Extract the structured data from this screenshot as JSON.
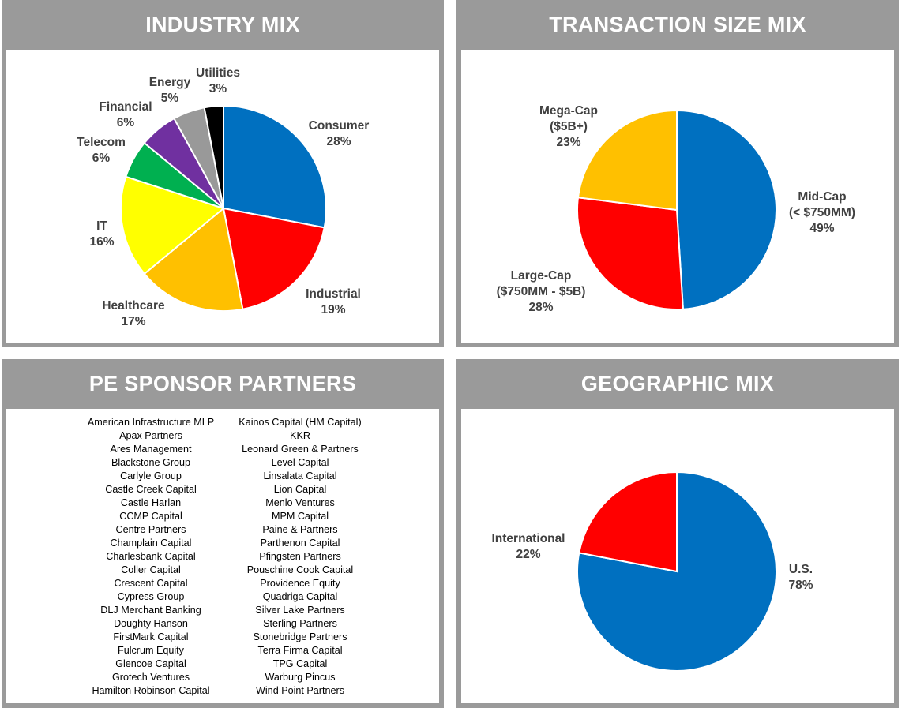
{
  "colors": {
    "blue": "#0070C0",
    "red": "#FF0000",
    "gold": "#FFC000",
    "yellow": "#FFFF00",
    "green": "#00B050",
    "purple": "#7030A0",
    "gray": "#999999",
    "black": "#000000",
    "header_bg": "#9a9a9a",
    "label_text": "#404040"
  },
  "chart_data": [
    {
      "type": "pie",
      "title": "INDUSTRY MIX",
      "slices": [
        {
          "label": "Consumer",
          "value": 28,
          "display": "28%",
          "color": "#0070C0"
        },
        {
          "label": "Industrial",
          "value": 19,
          "display": "19%",
          "color": "#FF0000"
        },
        {
          "label": "Healthcare",
          "value": 17,
          "display": "17%",
          "color": "#FFC000"
        },
        {
          "label": "IT",
          "value": 16,
          "display": "16%",
          "color": "#FFFF00"
        },
        {
          "label": "Telecom",
          "value": 6,
          "display": "6%",
          "color": "#00B050"
        },
        {
          "label": "Financial",
          "value": 6,
          "display": "6%",
          "color": "#7030A0"
        },
        {
          "label": "Energy",
          "value": 5,
          "display": "5%",
          "color": "#999999"
        },
        {
          "label": "Utilities",
          "value": 3,
          "display": "3%",
          "color": "#000000"
        }
      ]
    },
    {
      "type": "pie",
      "title": "TRANSACTION SIZE MIX",
      "slices": [
        {
          "label": "Mid-Cap|(< $750MM)",
          "value": 49,
          "display": "49%",
          "color": "#0070C0"
        },
        {
          "label": "Large-Cap|($750MM - $5B)",
          "value": 28,
          "display": "28%",
          "color": "#FF0000"
        },
        {
          "label": "Mega-Cap|($5B+)",
          "value": 23,
          "display": "23%",
          "color": "#FFC000"
        }
      ]
    },
    {
      "type": "pie",
      "title": "GEOGRAPHIC MIX",
      "slices": [
        {
          "label": "U.S.",
          "value": 78,
          "display": "78%",
          "color": "#0070C0"
        },
        {
          "label": "International",
          "value": 22,
          "display": "22%",
          "color": "#FF0000"
        }
      ]
    }
  ],
  "pe_sponsors": {
    "title": "PE SPONSOR PARTNERS",
    "left": [
      "American Infrastructure MLP",
      "Apax Partners",
      "Ares Management",
      "Blackstone Group",
      "Carlyle Group",
      "Castle Creek Capital",
      "Castle Harlan",
      "CCMP Capital",
      "Centre Partners",
      "Champlain Capital",
      "Charlesbank Capital",
      "Coller Capital",
      "Crescent Capital",
      "Cypress Group",
      "DLJ Merchant Banking",
      "Doughty Hanson",
      "FirstMark Capital",
      "Fulcrum Equity",
      "Glencoe Capital",
      "Grotech Ventures",
      "Hamilton Robinson Capital"
    ],
    "right": [
      "Kainos Capital (HM Capital)",
      "KKR",
      "Leonard Green & Partners",
      "Level Capital",
      "Linsalata Capital",
      "Lion Capital",
      "Menlo Ventures",
      "MPM Capital",
      "Paine & Partners",
      "Parthenon Capital",
      "Pfingsten Partners",
      "Pouschine Cook Capital",
      "Providence Equity",
      "Quadriga Capital",
      "Silver Lake Partners",
      "Sterling Partners",
      "Stonebridge Partners",
      "Terra Firma Capital",
      "TPG Capital",
      "Warburg Pincus",
      "Wind Point Partners"
    ]
  }
}
